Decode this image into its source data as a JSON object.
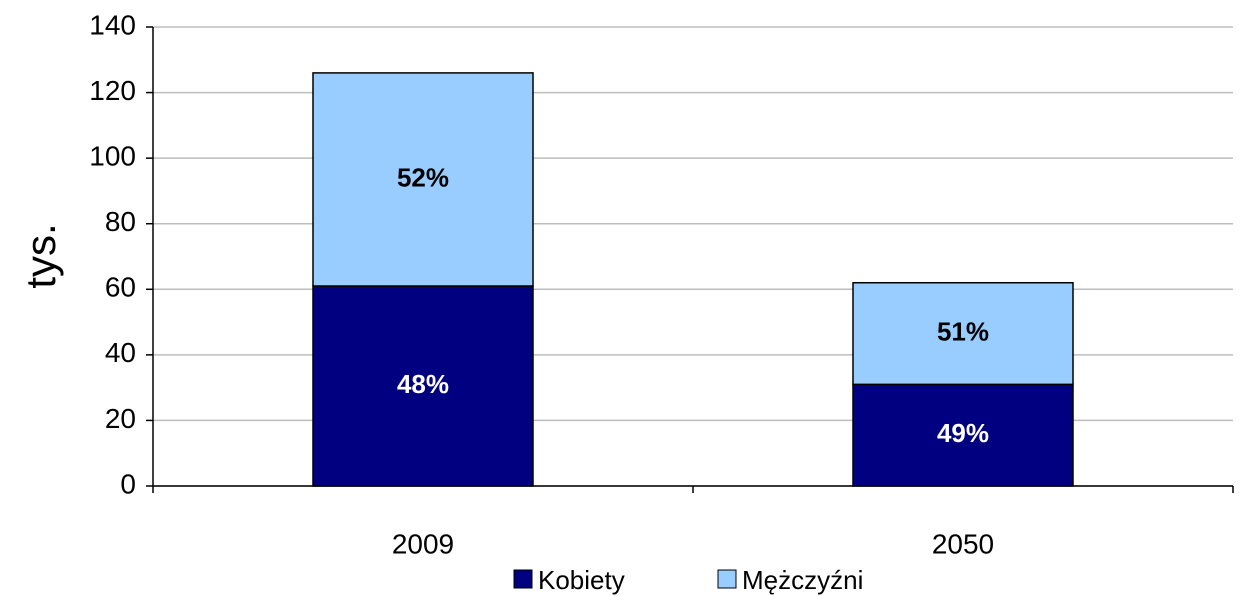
{
  "chart_data": {
    "type": "stacked_bar",
    "ylabel": "tys.",
    "categories": [
      "2009",
      "2050"
    ],
    "series": [
      {
        "name": "Kobiety",
        "color": "#000080",
        "values": [
          61,
          31
        ],
        "labels": [
          "48%",
          "49%"
        ],
        "label_color": "#ffffff"
      },
      {
        "name": "Mężczyźni",
        "color": "#99ccff",
        "values": [
          65,
          31
        ],
        "labels": [
          "52%",
          "51%"
        ],
        "label_color": "#000000"
      }
    ],
    "ylim": [
      0,
      140
    ],
    "yticks": [
      0,
      20,
      40,
      60,
      80,
      100,
      120,
      140
    ],
    "grid": true,
    "legend": "bottom"
  }
}
